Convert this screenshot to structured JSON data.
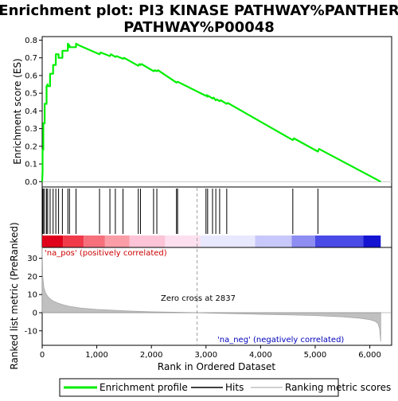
{
  "chart_data": {
    "type": "line",
    "title_line1": "Enrichment plot: PI3 KINASE PATHWAY%PANTHER",
    "title_line2": "PATHWAY%P00048",
    "top_panel": {
      "ylabel": "Enrichment score (ES)",
      "ylim": [
        -0.03,
        0.82
      ],
      "yticks": [
        0.0,
        0.1,
        0.2,
        0.3,
        0.4,
        0.5,
        0.6,
        0.7,
        0.8
      ],
      "ytick_labels": [
        "0.0",
        "0.1",
        "0.2",
        "0.3",
        "0.4",
        "0.5",
        "0.6",
        "0.7",
        "0.8"
      ],
      "series": [
        {
          "name": "Enrichment profile",
          "color": "#00ee00",
          "x": [
            0,
            8,
            8,
            20,
            20,
            45,
            45,
            80,
            80,
            100,
            100,
            145,
            145,
            200,
            200,
            250,
            250,
            300,
            300,
            370,
            370,
            470,
            470,
            500,
            500,
            620,
            620,
            680,
            1050,
            1070,
            1240,
            1260,
            1340,
            1360,
            1480,
            1500,
            1760,
            1780,
            1800,
            1820,
            2040,
            2060,
            2100,
            2120,
            2460,
            2480,
            3000,
            3015,
            3030,
            3045,
            3120,
            3140,
            3180,
            3200,
            3250,
            3270,
            3380,
            3400,
            4590,
            4610,
            5050,
            5070,
            6200
          ],
          "y": [
            0.0,
            0.06,
            0.18,
            0.18,
            0.33,
            0.33,
            0.44,
            0.44,
            0.54,
            0.55,
            0.54,
            0.54,
            0.61,
            0.61,
            0.66,
            0.66,
            0.72,
            0.72,
            0.7,
            0.7,
            0.74,
            0.74,
            0.78,
            0.77,
            0.76,
            0.76,
            0.78,
            0.77,
            0.72,
            0.73,
            0.71,
            0.72,
            0.705,
            0.71,
            0.695,
            0.7,
            0.655,
            0.665,
            0.66,
            0.665,
            0.625,
            0.63,
            0.625,
            0.63,
            0.56,
            0.565,
            0.485,
            0.49,
            0.48,
            0.485,
            0.47,
            0.475,
            0.46,
            0.465,
            0.455,
            0.46,
            0.44,
            0.445,
            0.235,
            0.245,
            0.17,
            0.185,
            0.0
          ]
        }
      ],
      "baseline": 0.0
    },
    "hits": {
      "name": "Hits",
      "color": "#000000",
      "positions": [
        8,
        20,
        45,
        80,
        100,
        145,
        200,
        250,
        300,
        370,
        470,
        500,
        620,
        1050,
        1240,
        1340,
        1480,
        1760,
        1800,
        2040,
        2100,
        2460,
        2480,
        3000,
        3030,
        3120,
        3180,
        3250,
        3380,
        4590,
        5050
      ]
    },
    "color_bar": {
      "segments": [
        {
          "start": 0,
          "end": 380,
          "color": "#e0001b"
        },
        {
          "start": 380,
          "end": 760,
          "color": "#f03a4a"
        },
        {
          "start": 760,
          "end": 1150,
          "color": "#f6707c"
        },
        {
          "start": 1150,
          "end": 1600,
          "color": "#fa9da6"
        },
        {
          "start": 1600,
          "end": 2250,
          "color": "#fcc4d6"
        },
        {
          "start": 2250,
          "end": 2900,
          "color": "#fce0ef"
        },
        {
          "start": 2900,
          "end": 3900,
          "color": "#e8e8ff"
        },
        {
          "start": 3900,
          "end": 4570,
          "color": "#c8c8fa"
        },
        {
          "start": 4570,
          "end": 5000,
          "color": "#8d8df2"
        },
        {
          "start": 5000,
          "end": 5880,
          "color": "#4a4ae6"
        },
        {
          "start": 5880,
          "end": 6200,
          "color": "#1414d2"
        }
      ]
    },
    "bottom_panel": {
      "xlabel": "Rank in Ordered Dataset",
      "ylabel": "Ranked list metric (PreRanked)",
      "xlim": [
        0,
        6400
      ],
      "ylim": [
        -18,
        36
      ],
      "xticks": [
        0,
        1000,
        2000,
        3000,
        4000,
        5000,
        6000
      ],
      "xtick_labels": [
        "0",
        "1,000",
        "2,000",
        "3,000",
        "4,000",
        "5,000",
        "6,000"
      ],
      "yticks": [
        -10,
        0,
        10,
        20,
        30
      ],
      "ytick_labels": [
        "-10",
        "0",
        "10",
        "20",
        "30"
      ],
      "series": [
        {
          "name": "Ranking metric scores",
          "color": "#c0c0c0",
          "x": [
            0,
            10,
            30,
            60,
            100,
            150,
            200,
            300,
            400,
            500,
            700,
            1000,
            1500,
            2000,
            2500,
            2837,
            3200,
            3600,
            4000,
            4500,
            5000,
            5500,
            5800,
            6000,
            6100,
            6150,
            6180,
            6200
          ],
          "y": [
            36,
            20,
            14,
            11,
            9,
            7.5,
            6.5,
            5.2,
            4.2,
            3.5,
            2.6,
            1.8,
            1.0,
            0.5,
            0.2,
            0.0,
            -0.3,
            -0.6,
            -0.9,
            -1.2,
            -1.6,
            -2.3,
            -3.0,
            -3.8,
            -4.8,
            -6.0,
            -9,
            -16
          ]
        }
      ],
      "zero_cross": 2837,
      "annotations": {
        "pos_label": "'na_pos' (positively correlated)",
        "pos_color": "#cc0000",
        "neg_label": "'na_neg' (negatively correlated)",
        "neg_color": "#0000bb",
        "zero_cross_label": "Zero cross at 2837"
      }
    },
    "legend": {
      "placement": "bottom",
      "entries": [
        {
          "label": "Enrichment profile",
          "color": "#00ee00"
        },
        {
          "label": "Hits",
          "color": "#000000"
        },
        {
          "label": "Ranking metric scores",
          "color": "#c0c0c0"
        }
      ]
    }
  }
}
